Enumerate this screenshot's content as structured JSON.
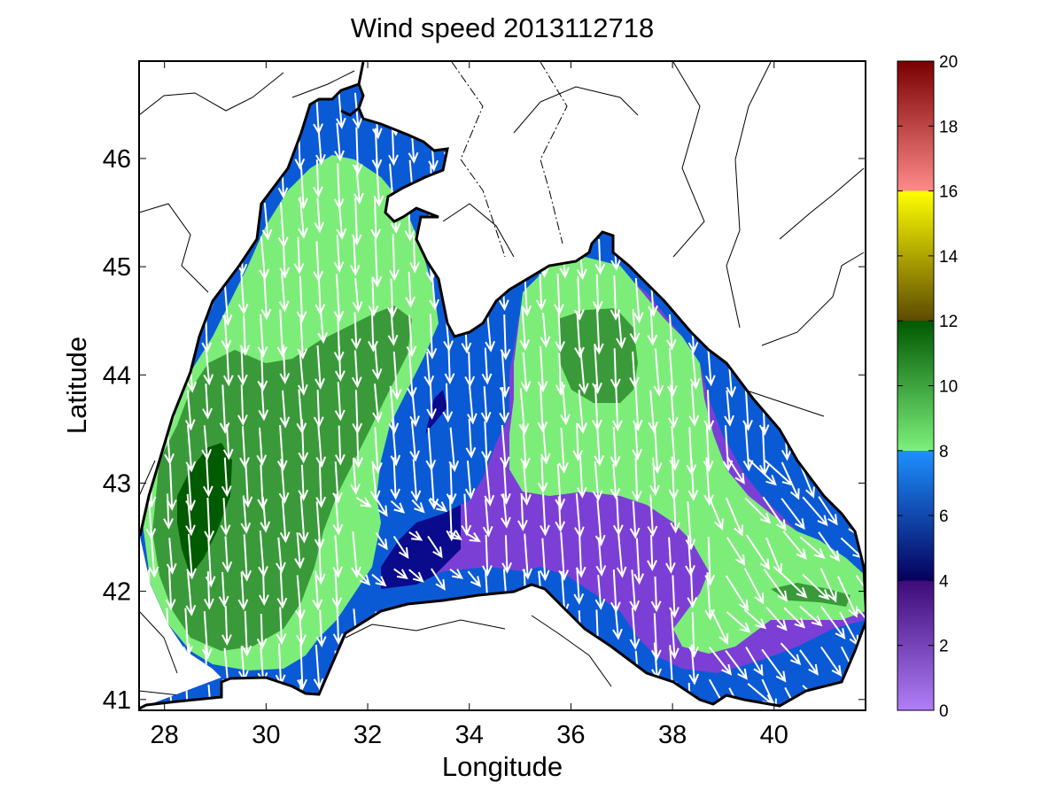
{
  "chart_data": {
    "type": "heatmap",
    "title": "Wind speed 2013112718",
    "xlabel": "Longitude",
    "ylabel": "Latitude",
    "xlim": [
      27.5,
      41.8
    ],
    "ylim": [
      40.9,
      46.9
    ],
    "xticks": [
      "28",
      "30",
      "32",
      "34",
      "36",
      "38",
      "40"
    ],
    "yticks": [
      "41",
      "42",
      "43",
      "44",
      "45",
      "46"
    ],
    "colorbar": {
      "range": [
        0,
        20
      ],
      "ticks": [
        "0",
        "2",
        "4",
        "6",
        "8",
        "10",
        "12",
        "14",
        "16",
        "18",
        "20"
      ],
      "bands": [
        {
          "from": 0,
          "to": 4,
          "color_low": "#b07ef7",
          "color_high": "#3d0a78"
        },
        {
          "from": 4,
          "to": 8,
          "color_low": "#05005c",
          "color_high": "#1e90ff"
        },
        {
          "from": 8,
          "to": 12,
          "color_low": "#7cf07c",
          "color_high": "#005800"
        },
        {
          "from": 12,
          "to": 16,
          "color_low": "#5c4a00",
          "color_high": "#ffff00"
        },
        {
          "from": 16,
          "to": 20,
          "color_low": "#ff8a8a",
          "color_high": "#7a0000"
        }
      ]
    },
    "contour_levels": [
      {
        "level": "0-4",
        "color": "#7c3fd6"
      },
      {
        "level": "4-5",
        "color": "#0a0a8c"
      },
      {
        "level": "5-7",
        "color": "#0a5ad6"
      },
      {
        "level": "8-9",
        "color": "#7ded7a"
      },
      {
        "level": "10-11",
        "color": "#3a9a3a"
      },
      {
        "level": "12",
        "color": "#005a00"
      }
    ],
    "wind_vectors": {
      "color": "#ffffff",
      "dominant_direction": "north-to-south"
    }
  }
}
